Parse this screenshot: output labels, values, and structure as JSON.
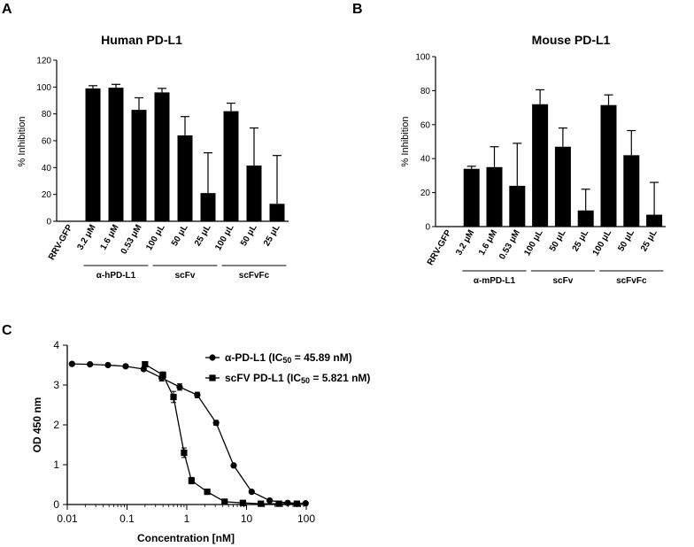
{
  "chart_data": [
    {
      "panel": "A",
      "type": "bar",
      "title": "Human PD-L1",
      "ylabel": "% Inhibition",
      "ylim": [
        0,
        120
      ],
      "yticks": [
        0,
        20,
        40,
        60,
        80,
        100,
        120
      ],
      "categories": [
        "RRV-GFP",
        "3.2 μM",
        "1.6 μM",
        "0.53 μM",
        "100 μL",
        "50 μL",
        "25 μL",
        "100 μL",
        "50 μL",
        "25 μL"
      ],
      "values": [
        0,
        99,
        99.5,
        83,
        96,
        64,
        21,
        82,
        41.5,
        13
      ],
      "errors": [
        0,
        2,
        2.5,
        9,
        3,
        14,
        30,
        6,
        28,
        36
      ],
      "groups": [
        {
          "label": "α-hPD-L1",
          "from": 1,
          "to": 3
        },
        {
          "label": "scFv",
          "from": 4,
          "to": 6
        },
        {
          "label": "scFvFc",
          "from": 7,
          "to": 9
        }
      ]
    },
    {
      "panel": "B",
      "type": "bar",
      "title": "Mouse PD-L1",
      "ylabel": "% Inhibition",
      "ylim": [
        0,
        100
      ],
      "yticks": [
        0,
        20,
        40,
        60,
        80,
        100
      ],
      "categories": [
        "RRV-GFP",
        "3.2 μM",
        "1.6 μM",
        "0.53 μM",
        "100 μL",
        "50 μL",
        "25 μL",
        "100 μL",
        "50 μL",
        "25 μL"
      ],
      "values": [
        0,
        34,
        35,
        24,
        72,
        47,
        9.5,
        71.5,
        42,
        7
      ],
      "errors": [
        0,
        1.5,
        12,
        25,
        8.5,
        11,
        12.5,
        6,
        14.5,
        19
      ],
      "groups": [
        {
          "label": "α-mPD-L1",
          "from": 1,
          "to": 3
        },
        {
          "label": "scFv",
          "from": 4,
          "to": 6
        },
        {
          "label": "scFvFc",
          "from": 7,
          "to": 9
        }
      ]
    },
    {
      "panel": "C",
      "type": "scatter",
      "xlabel": "Concentration [nM]",
      "ylabel": "OD 450 nm",
      "xscale": "log",
      "xlim": [
        0.01,
        100
      ],
      "ylim": [
        0,
        4
      ],
      "xticks": [
        0.01,
        0.1,
        1,
        10,
        100
      ],
      "xtick_labels": [
        "0.01",
        "0.1",
        "1",
        "10",
        "100"
      ],
      "yticks": [
        0,
        1,
        2,
        3,
        4
      ],
      "legend_placement": "top-right",
      "series": [
        {
          "name_prefix": "α-PD-L1 (IC",
          "name_sub": "50",
          "name_suffix": " = 45.89 nM)",
          "marker": "circle",
          "x": [
            0.012,
            0.024,
            0.048,
            0.095,
            0.19,
            0.38,
            0.76,
            1.5,
            3.1,
            6.1,
            12.2,
            24.4,
            48.8,
            97.6
          ],
          "y": [
            3.53,
            3.52,
            3.5,
            3.47,
            3.4,
            3.18,
            2.95,
            2.75,
            2.05,
            0.98,
            0.32,
            0.1,
            0.04,
            0.03
          ],
          "err": [
            0,
            0,
            0,
            0,
            0,
            0.08,
            0.08,
            0.07,
            0.06,
            0.04,
            0,
            0,
            0,
            0
          ]
        },
        {
          "name_prefix": "scFV PD-L1 (IC",
          "name_sub": "50",
          "name_suffix": " = 5.821 nM)",
          "marker": "square",
          "x": [
            0.2,
            0.4,
            0.6,
            0.9,
            1.2,
            2.2,
            4.3,
            8.7,
            17.4,
            34.8,
            69.6
          ],
          "y": [
            3.52,
            3.25,
            2.7,
            1.3,
            0.6,
            0.32,
            0.07,
            0.04,
            0.02,
            0.02,
            0.02
          ],
          "err": [
            0.05,
            0.08,
            0.14,
            0.12,
            0.08,
            0.05,
            0,
            0,
            0,
            0,
            0
          ]
        }
      ]
    }
  ]
}
